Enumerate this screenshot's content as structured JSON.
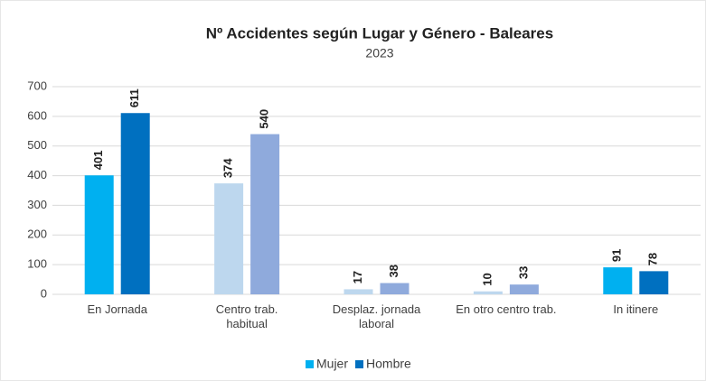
{
  "chart_data": {
    "type": "bar",
    "title": "Nº Accidentes según Lugar y Género - Baleares",
    "subtitle": "2023",
    "categories": [
      "En Jornada",
      "Centro trab.\nhabitual",
      "Desplaz. jornada\nlaboral",
      "En otro centro trab.",
      "In itinere"
    ],
    "series": [
      {
        "name": "Mujer",
        "color": "#00b0f0",
        "colors": [
          "#00b0f0",
          "#bdd7ee",
          "#bdd7ee",
          "#bdd7ee",
          "#00b0f0"
        ],
        "values": [
          401,
          374,
          17,
          10,
          91
        ]
      },
      {
        "name": "Hombre",
        "color": "#0070c0",
        "colors": [
          "#0070c0",
          "#8faadc",
          "#8faadc",
          "#8faadc",
          "#0070c0"
        ],
        "values": [
          611,
          540,
          38,
          33,
          78
        ]
      }
    ],
    "ylim": [
      0,
      700
    ],
    "yticks": [
      0,
      100,
      200,
      300,
      400,
      500,
      600,
      700
    ],
    "grid": true,
    "legend": "bottom"
  }
}
